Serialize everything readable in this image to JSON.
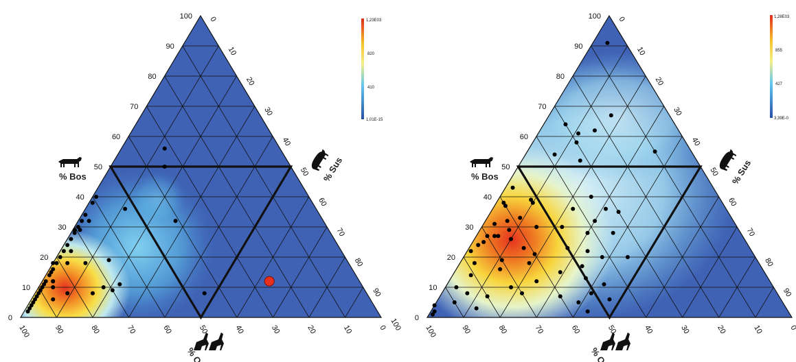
{
  "chart_data": [
    {
      "type": "scatter",
      "subtype": "ternary-density",
      "axes": {
        "left_label": "% Bos",
        "right_label": "% Sus",
        "bottom_label": "% O/C",
        "left_ticks": [
          "0",
          "10",
          "20",
          "30",
          "40",
          "50",
          "60",
          "70",
          "80",
          "90",
          "100"
        ],
        "right_ticks": [
          "0",
          "10",
          "20",
          "30",
          "40",
          "50",
          "60",
          "70",
          "80",
          "90",
          "100"
        ],
        "bottom_ticks": [
          "100",
          "90",
          "80",
          "70",
          "60",
          "50",
          "40",
          "30",
          "20",
          "10",
          "0"
        ]
      },
      "colorbar": {
        "max_label": "1,23E03",
        "mid_high_label": "820",
        "mid_low_label": "410",
        "min_label": "1,01E-15"
      },
      "points": [
        {
          "bos": 2,
          "oc": 97
        },
        {
          "bos": 3,
          "oc": 96
        },
        {
          "bos": 4,
          "oc": 95
        },
        {
          "bos": 5,
          "oc": 94
        },
        {
          "bos": 6,
          "oc": 93
        },
        {
          "bos": 7,
          "oc": 92
        },
        {
          "bos": 8,
          "oc": 91
        },
        {
          "bos": 9,
          "oc": 90
        },
        {
          "bos": 10,
          "oc": 89
        },
        {
          "bos": 11,
          "oc": 88
        },
        {
          "bos": 12,
          "oc": 87
        },
        {
          "bos": 14,
          "oc": 85
        },
        {
          "bos": 16,
          "oc": 83
        },
        {
          "bos": 18,
          "oc": 81
        },
        {
          "bos": 20,
          "oc": 79
        },
        {
          "bos": 22,
          "oc": 77
        },
        {
          "bos": 24,
          "oc": 75
        },
        {
          "bos": 26,
          "oc": 73
        },
        {
          "bos": 28,
          "oc": 71
        },
        {
          "bos": 30,
          "oc": 69
        },
        {
          "bos": 32,
          "oc": 67
        },
        {
          "bos": 34,
          "oc": 65
        },
        {
          "bos": 38,
          "oc": 61
        },
        {
          "bos": 40,
          "oc": 59
        },
        {
          "bos": 10,
          "oc": 86
        },
        {
          "bos": 12,
          "oc": 85
        },
        {
          "bos": 15,
          "oc": 84
        },
        {
          "bos": 18,
          "oc": 82
        },
        {
          "bos": 6,
          "oc": 88
        },
        {
          "bos": 18,
          "oc": 78
        },
        {
          "bos": 18,
          "oc": 73
        },
        {
          "bos": 29,
          "oc": 69
        },
        {
          "bos": 32,
          "oc": 65
        },
        {
          "bos": 30,
          "oc": 71
        },
        {
          "bos": 22,
          "oc": 75
        },
        {
          "bos": 19,
          "oc": 66
        },
        {
          "bos": 9,
          "oc": 70
        },
        {
          "bos": 10,
          "oc": 72
        },
        {
          "bos": 8,
          "oc": 76
        },
        {
          "bos": 8,
          "oc": 83
        },
        {
          "bos": 11,
          "oc": 67
        },
        {
          "bos": 50,
          "oc": 35
        },
        {
          "bos": 56,
          "oc": 32
        },
        {
          "bos": 36,
          "oc": 53
        },
        {
          "bos": 32,
          "oc": 41
        },
        {
          "bos": 8,
          "oc": 45
        },
        {
          "bos": 12,
          "oc": 85
        }
      ],
      "highlight_point": {
        "bos": 12,
        "oc": 25
      }
    },
    {
      "type": "scatter",
      "subtype": "ternary-density",
      "axes": {
        "left_label": "% Bos",
        "right_label": "% Sus",
        "bottom_label": "% O/C",
        "left_ticks": [
          "0",
          "10",
          "20",
          "30",
          "40",
          "50",
          "60",
          "70",
          "80",
          "90",
          "100"
        ],
        "right_ticks": [
          "0",
          "10",
          "20",
          "30",
          "40",
          "50",
          "60",
          "70",
          "80",
          "90",
          "100"
        ],
        "bottom_ticks": [
          "100",
          "90",
          "80",
          "70",
          "60",
          "50",
          "40",
          "30",
          "20",
          "10",
          "0"
        ]
      },
      "colorbar": {
        "max_label": "1,28E03",
        "mid_high_label": "855",
        "mid_low_label": "427",
        "min_label": "3,39E-0"
      },
      "points": [
        {
          "bos": 91,
          "oc": 5
        },
        {
          "bos": 67,
          "oc": 16
        },
        {
          "bos": 62,
          "oc": 23
        },
        {
          "bos": 64,
          "oc": 30
        },
        {
          "bos": 61,
          "oc": 28
        },
        {
          "bos": 58,
          "oc": 30
        },
        {
          "bos": 55,
          "oc": 10
        },
        {
          "bos": 54,
          "oc": 38
        },
        {
          "bos": 52,
          "oc": 32
        },
        {
          "bos": 43,
          "oc": 55
        },
        {
          "bos": 40,
          "oc": 35
        },
        {
          "bos": 39,
          "oc": 52
        },
        {
          "bos": 38,
          "oc": 52
        },
        {
          "bos": 38,
          "oc": 60
        },
        {
          "bos": 37,
          "oc": 60
        },
        {
          "bos": 36,
          "oc": 42
        },
        {
          "bos": 35,
          "oc": 30
        },
        {
          "bos": 33,
          "oc": 58
        },
        {
          "bos": 32,
          "oc": 62
        },
        {
          "bos": 32,
          "oc": 38
        },
        {
          "bos": 31,
          "oc": 66
        },
        {
          "bos": 30,
          "oc": 55
        },
        {
          "bos": 30,
          "oc": 48
        },
        {
          "bos": 29,
          "oc": 63
        },
        {
          "bos": 28,
          "oc": 42
        },
        {
          "bos": 28,
          "oc": 35
        },
        {
          "bos": 27,
          "oc": 70
        },
        {
          "bos": 27,
          "oc": 68
        },
        {
          "bos": 27,
          "oc": 67
        },
        {
          "bos": 26,
          "oc": 64
        },
        {
          "bos": 25,
          "oc": 72
        },
        {
          "bos": 24,
          "oc": 74
        },
        {
          "bos": 23,
          "oc": 62
        },
        {
          "bos": 22,
          "oc": 77
        },
        {
          "bos": 22,
          "oc": 45
        },
        {
          "bos": 21,
          "oc": 60
        },
        {
          "bos": 20,
          "oc": 42
        },
        {
          "bos": 20,
          "oc": 35
        },
        {
          "bos": 19,
          "oc": 70
        },
        {
          "bos": 18,
          "oc": 78
        },
        {
          "bos": 18,
          "oc": 63
        },
        {
          "bos": 17,
          "oc": 49
        },
        {
          "bos": 16,
          "oc": 72
        },
        {
          "bos": 15,
          "oc": 56
        },
        {
          "bos": 14,
          "oc": 81
        },
        {
          "bos": 13,
          "oc": 50
        },
        {
          "bos": 12,
          "oc": 64
        },
        {
          "bos": 11,
          "oc": 46
        },
        {
          "bos": 10,
          "oc": 87
        },
        {
          "bos": 10,
          "oc": 72
        },
        {
          "bos": 8,
          "oc": 85
        },
        {
          "bos": 8,
          "oc": 70
        },
        {
          "bos": 7,
          "oc": 80
        },
        {
          "bos": 7,
          "oc": 60
        },
        {
          "bos": 6,
          "oc": 47
        },
        {
          "bos": 5,
          "oc": 90
        },
        {
          "bos": 4,
          "oc": 96
        },
        {
          "bos": 3,
          "oc": 85
        },
        {
          "bos": 2,
          "oc": 97
        },
        {
          "bos": 2,
          "oc": 55
        },
        {
          "bos": 1,
          "oc": 98
        },
        {
          "bos": 36,
          "oc": 33
        },
        {
          "bos": 23,
          "oc": 50
        },
        {
          "bos": 5,
          "oc": 56
        },
        {
          "bos": 8,
          "oc": 51
        }
      ]
    }
  ]
}
